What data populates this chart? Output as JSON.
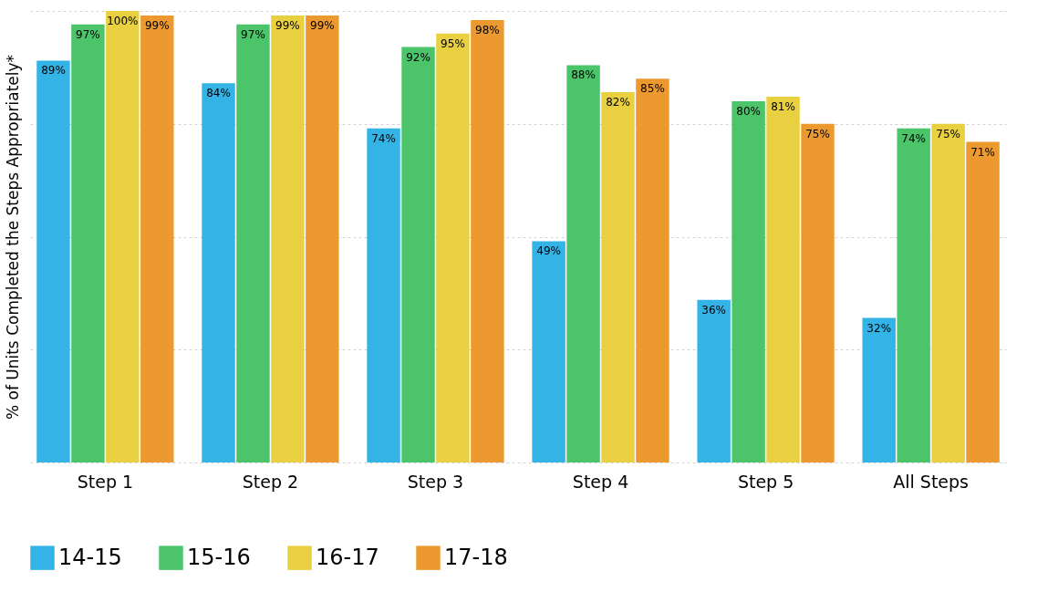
{
  "chart_data": {
    "type": "bar",
    "ylabel": "% of Units Completed the Steps Appropriately*",
    "categories": [
      "Step 1",
      "Step 2",
      "Step 3",
      "Step 4",
      "Step 5",
      "All Steps"
    ],
    "series": [
      {
        "name": "14-15",
        "color": "#33b3e6",
        "values": [
          89,
          84,
          74,
          49,
          36,
          32
        ],
        "value_labels": [
          "89%",
          "84%",
          "74%",
          "49%",
          "36%",
          "32%"
        ]
      },
      {
        "name": "15-16",
        "color": "#4cc46a",
        "values": [
          97,
          97,
          92,
          88,
          80,
          74
        ],
        "value_labels": [
          "97%",
          "97%",
          "92%",
          "88%",
          "80%",
          "74%"
        ]
      },
      {
        "name": "16-17",
        "color": "#e8d040",
        "values": [
          100,
          99,
          95,
          82,
          81,
          75
        ],
        "value_labels": [
          "100%",
          "99%",
          "95%",
          "82%",
          "81%",
          "75%"
        ]
      },
      {
        "name": "17-18",
        "color": "#ec9a30",
        "values": [
          99,
          99,
          98,
          85,
          75,
          71
        ],
        "value_labels": [
          "99%",
          "99%",
          "98%",
          "85%",
          "75%",
          "71%"
        ]
      }
    ],
    "ylim": [
      0,
      100
    ],
    "yticks": [
      {
        "value": 0,
        "label": null
      },
      {
        "value": 25,
        "label": null
      },
      {
        "value": 50,
        "label": null
      },
      {
        "value": 75,
        "label": null
      },
      {
        "value": 100,
        "label": null
      }
    ],
    "tick_labels": "x",
    "grid": "y",
    "legend": "bottom"
  }
}
